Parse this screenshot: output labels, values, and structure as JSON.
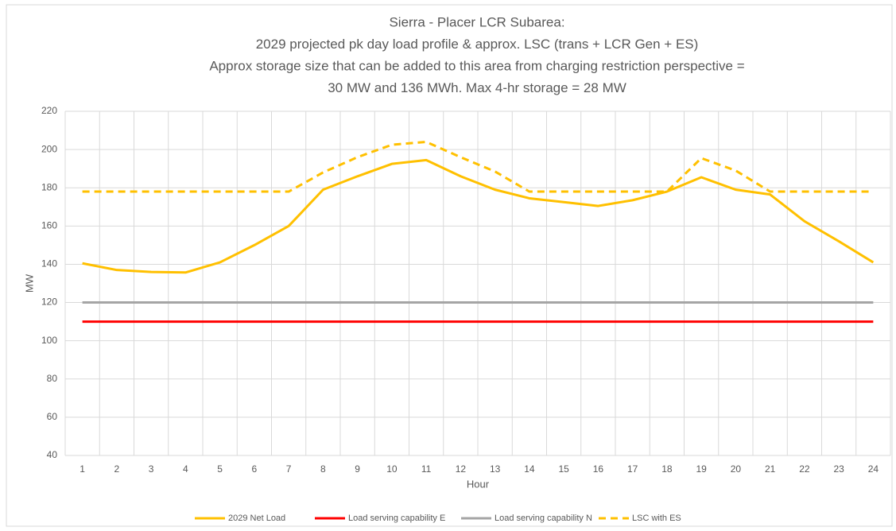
{
  "chart_data": {
    "type": "line",
    "title": [
      "Sierra - Placer LCR Subarea:",
      "2029 projected pk day load profile & approx. LSC (trans + LCR Gen + ES)",
      "Approx storage size that can be added to this area from charging restriction perspective =",
      "30 MW and 136 MWh. Max 4-hr storage = 28 MW"
    ],
    "x_label": "Hour",
    "y_label": "MW",
    "categories": [
      "1",
      "2",
      "3",
      "4",
      "5",
      "6",
      "7",
      "8",
      "9",
      "10",
      "11",
      "12",
      "13",
      "14",
      "15",
      "16",
      "17",
      "18",
      "19",
      "20",
      "21",
      "22",
      "23",
      "24"
    ],
    "series": [
      {
        "name": "2029 Net Load",
        "color": "#ffc000",
        "dash": false,
        "values": [
          140.5,
          137,
          136,
          135.7,
          141,
          150,
          160,
          179,
          186,
          192.5,
          194.5,
          186,
          179,
          174.5,
          172.5,
          170.5,
          173.5,
          178,
          185.5,
          179,
          176.5,
          162.5,
          152,
          141
        ]
      },
      {
        "name": "Load serving capability E",
        "color": "#ff0000",
        "dash": false,
        "values": [
          110,
          110,
          110,
          110,
          110,
          110,
          110,
          110,
          110,
          110,
          110,
          110,
          110,
          110,
          110,
          110,
          110,
          110,
          110,
          110,
          110,
          110,
          110,
          110
        ]
      },
      {
        "name": "Load serving capability N",
        "color": "#a5a5a5",
        "dash": false,
        "values": [
          120,
          120,
          120,
          120,
          120,
          120,
          120,
          120,
          120,
          120,
          120,
          120,
          120,
          120,
          120,
          120,
          120,
          120,
          120,
          120,
          120,
          120,
          120,
          120
        ]
      },
      {
        "name": "LSC with ES",
        "color": "#ffc000",
        "dash": true,
        "values": [
          178,
          178,
          178,
          178,
          178,
          178,
          178,
          188,
          196,
          202.5,
          204,
          196,
          188.5,
          178,
          178,
          178,
          178,
          178,
          195.5,
          189,
          178,
          178,
          178,
          178
        ]
      }
    ],
    "ylim": [
      40,
      220
    ],
    "yticks": [
      40,
      60,
      80,
      100,
      120,
      140,
      160,
      180,
      200,
      220
    ],
    "grid": true,
    "legend": "bottom"
  }
}
